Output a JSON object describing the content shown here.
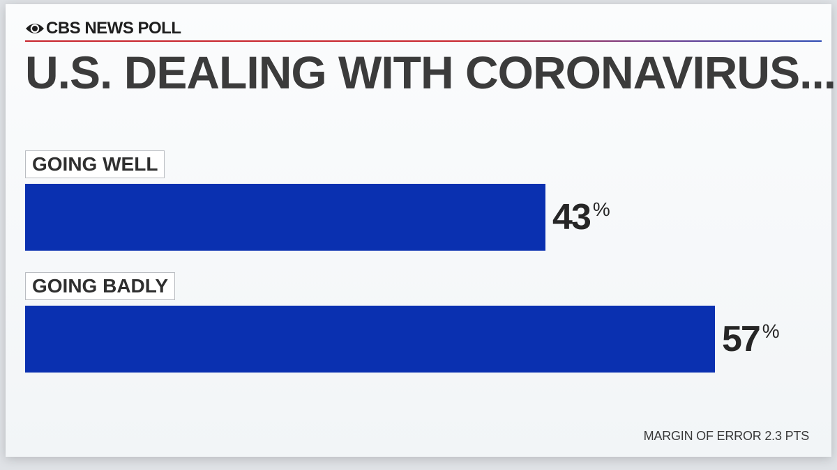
{
  "brand": {
    "logo_icon": "cbs-eye-icon",
    "text": "CBS NEWS POLL"
  },
  "chart_data": {
    "type": "bar",
    "orientation": "horizontal",
    "title": "U.S. DEALING WITH CORONAVIRUS...",
    "categories": [
      "GOING WELL",
      "GOING BADLY"
    ],
    "values": [
      43,
      57
    ],
    "value_suffix": "%",
    "xlim": [
      0,
      100
    ],
    "bar_color": "#0a30b0",
    "grid": false,
    "legend": "none"
  },
  "footnote": "MARGIN OF ERROR 2.3 PTS"
}
